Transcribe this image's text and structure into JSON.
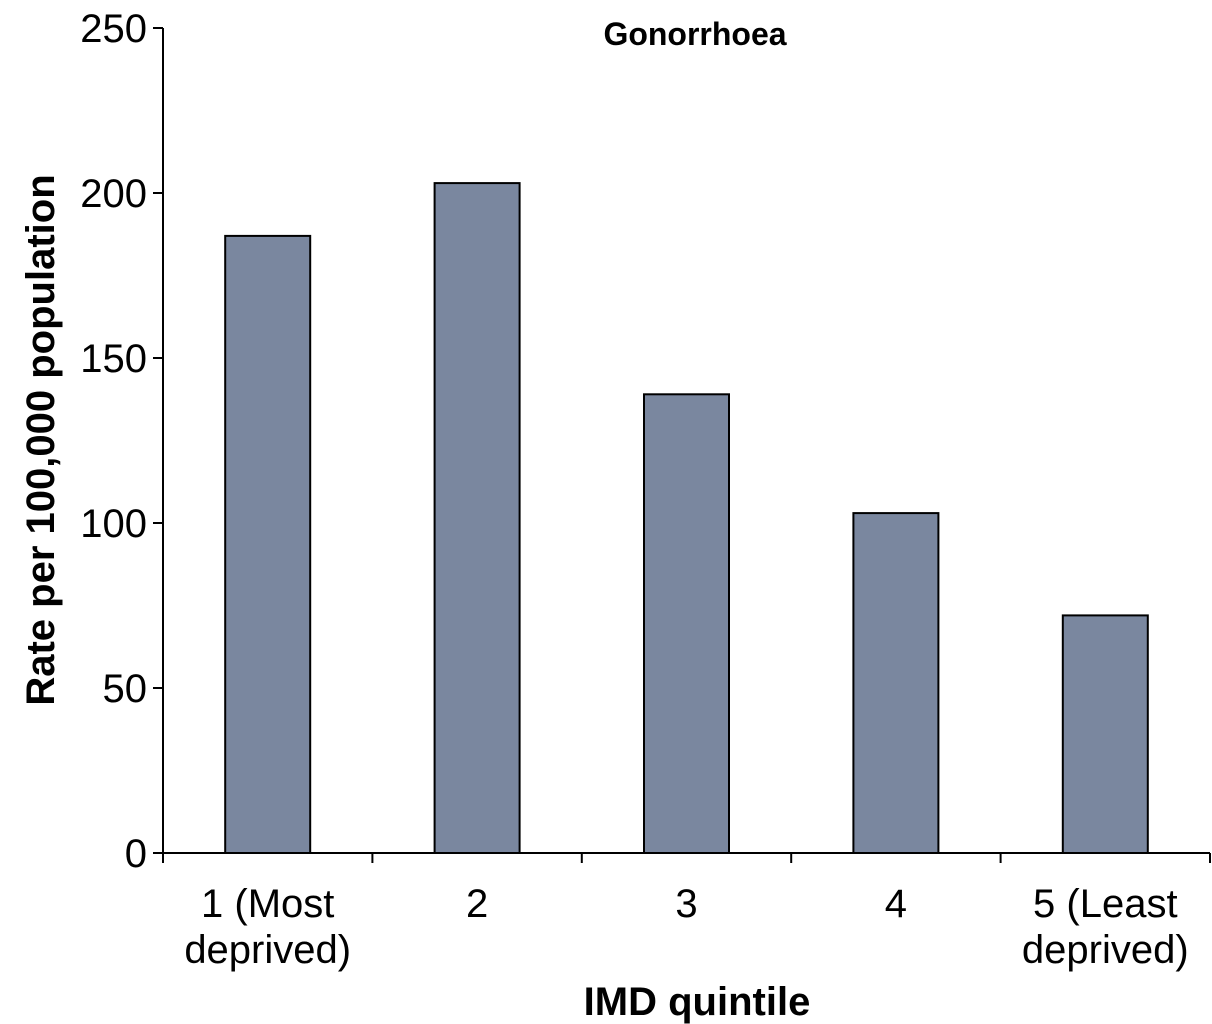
{
  "chart_data": {
    "type": "bar",
    "title": "Gonorrhoea",
    "xlabel": "IMD quintile",
    "ylabel": "Rate per 100,000 population",
    "categories": [
      [
        "1 (Most",
        "deprived)"
      ],
      [
        "2"
      ],
      [
        "3"
      ],
      [
        "4"
      ],
      [
        "5 (Least",
        "deprived)"
      ]
    ],
    "values": [
      187,
      203,
      139,
      103,
      72
    ],
    "ylim": [
      0,
      250
    ],
    "yticks": [
      0,
      50,
      100,
      150,
      200,
      250
    ],
    "grid": false,
    "legend": "none",
    "bar_color": "#7a879f"
  }
}
